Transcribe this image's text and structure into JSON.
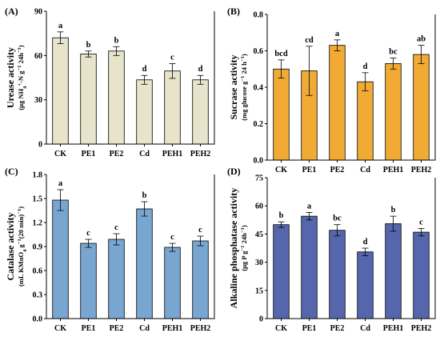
{
  "chart_data": [
    {
      "type": "bar",
      "panel": "(A)",
      "categories": [
        "CK",
        "PE1",
        "PE2",
        "Cd",
        "PEH1",
        "PEH2"
      ],
      "values": [
        72,
        61,
        63,
        43.5,
        49.5,
        43.5
      ],
      "errors": [
        4,
        2,
        3,
        3,
        5,
        3
      ],
      "letters": [
        "a",
        "b",
        "b",
        "d",
        "c",
        "d"
      ],
      "ylabel": "Urease activity",
      "ylabel_sub_parts": [
        "(µg NH",
        "4",
        "+",
        "-N g",
        "−1",
        " 24h",
        "−1",
        ")"
      ],
      "ylim": [
        0,
        90
      ],
      "yticks": [
        0,
        30,
        60,
        90
      ],
      "color": "#e8e3cb"
    },
    {
      "type": "bar",
      "panel": "(B)",
      "categories": [
        "CK",
        "PE1",
        "PE2",
        "Cd",
        "PEH1",
        "PEH2"
      ],
      "values": [
        0.5,
        0.49,
        0.63,
        0.43,
        0.53,
        0.58
      ],
      "errors": [
        0.05,
        0.135,
        0.03,
        0.05,
        0.03,
        0.05
      ],
      "letters": [
        "bcd",
        "cd",
        "a",
        "d",
        "bc",
        "ab"
      ],
      "ylabel": "Sucrase activity",
      "ylabel_sub_parts": [
        "(mg glucose g",
        "−1",
        " 24 h",
        "−1",
        ")"
      ],
      "ylim": [
        0,
        0.8
      ],
      "yticks": [
        0.0,
        0.2,
        0.4,
        0.6,
        0.8
      ],
      "color": "#f1ab35"
    },
    {
      "type": "bar",
      "panel": "(C)",
      "categories": [
        "CK",
        "PE1",
        "PE2",
        "Cd",
        "PEH1",
        "PEH2"
      ],
      "values": [
        1.48,
        0.94,
        0.99,
        1.37,
        0.89,
        0.97
      ],
      "errors": [
        0.13,
        0.05,
        0.07,
        0.09,
        0.05,
        0.06
      ],
      "letters": [
        "a",
        "c",
        "c",
        "b",
        "c",
        "c"
      ],
      "ylabel": "Catalase activity",
      "ylabel_sub_parts": [
        "(mL KMnO",
        "4",
        " g",
        "−1",
        "(20 min)",
        "−1",
        ")"
      ],
      "ylim": [
        0,
        1.8
      ],
      "yticks": [
        0.0,
        0.3,
        0.6,
        0.9,
        1.2,
        1.5,
        1.8
      ],
      "color": "#78a6d1"
    },
    {
      "type": "bar",
      "panel": "(D)",
      "categories": [
        "CK",
        "PE1",
        "PE2",
        "Cd",
        "PEH1",
        "PEH2"
      ],
      "values": [
        50,
        54.5,
        47,
        35.5,
        50.5,
        46
      ],
      "errors": [
        1.5,
        2,
        3,
        2,
        4,
        2
      ],
      "letters": [
        "b",
        "a",
        "bc",
        "d",
        "b",
        "c"
      ],
      "ylabel": "Alkaline phosphatase activity",
      "ylabel_sub_parts": [
        "(µg P g",
        "−1",
        " 24h",
        "−1",
        ")"
      ],
      "ylim": [
        0,
        75
      ],
      "yticks": [
        0,
        15,
        30,
        45,
        60,
        75
      ],
      "color": "#5566ad"
    }
  ]
}
